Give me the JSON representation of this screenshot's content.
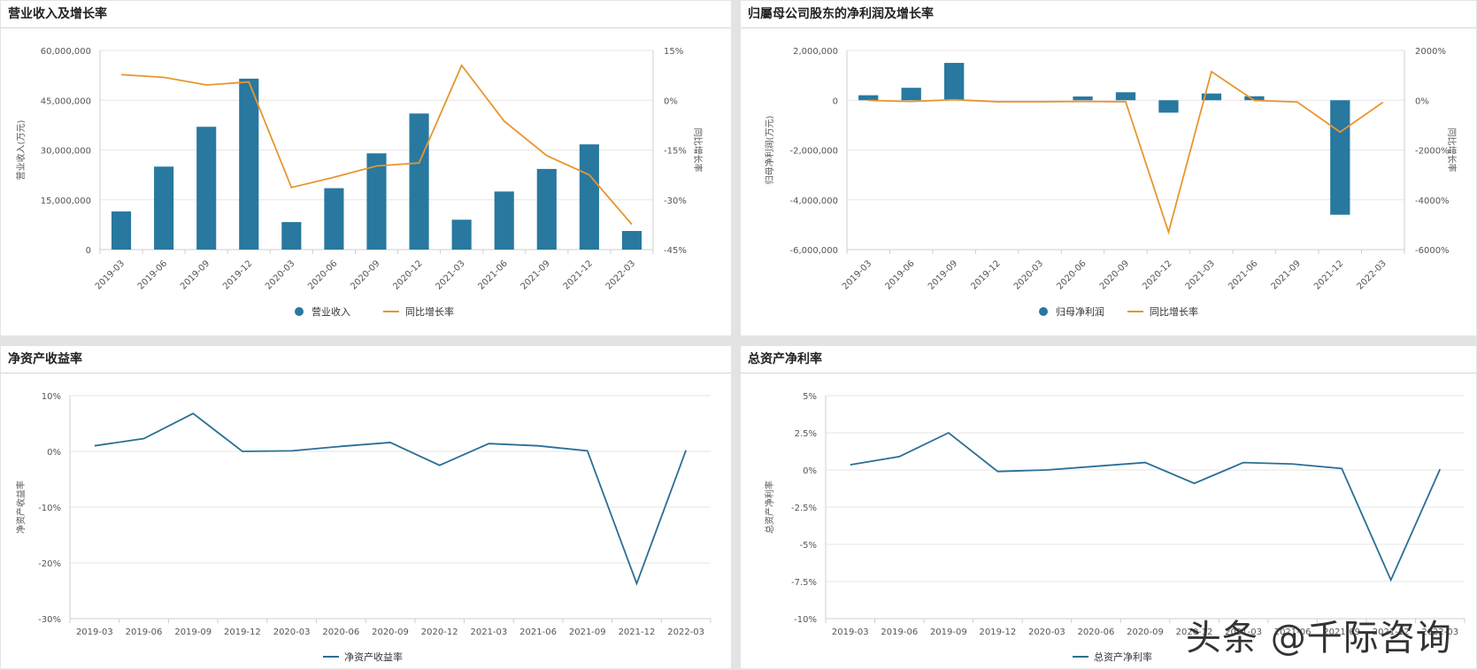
{
  "watermark": "头条 @千际咨询",
  "colors": {
    "bar": "#2878a0",
    "growth": "#e8962f",
    "line": "#2a6f95",
    "grid": "#e6e6e6",
    "axis": "#cfcfcf",
    "text": "#555555"
  },
  "chart_data": [
    {
      "type": "bar",
      "title": "营业收入及增长率",
      "categories": [
        "2019-03",
        "2019-06",
        "2019-09",
        "2019-12",
        "2020-03",
        "2020-06",
        "2020-09",
        "2020-12",
        "2021-03",
        "2021-06",
        "2021-09",
        "2021-12",
        "2022-03"
      ],
      "series": [
        {
          "name": "营业收入",
          "kind": "bar",
          "axis": "left",
          "values": [
            11500000,
            25000000,
            37000000,
            51500000,
            8300000,
            18500000,
            29000000,
            41000000,
            9000000,
            17500000,
            24300000,
            31700000,
            5600000
          ]
        },
        {
          "name": "同比增长率",
          "kind": "line",
          "axis": "right",
          "values": [
            7.7,
            6.9,
            4.6,
            5.5,
            -26.3,
            -23.2,
            -19.8,
            -18.9,
            10.5,
            -6.3,
            -16.7,
            -22.5,
            -37.4
          ]
        }
      ],
      "ylabel": "营业收入(万元)",
      "y2label": "同比增长率",
      "ylim": [
        0,
        60000000
      ],
      "yticks": [
        0,
        15000000,
        30000000,
        45000000,
        60000000
      ],
      "ytick_labels": [
        "0",
        "15,000,000",
        "30,000,000",
        "45,000,000",
        "60,000,000"
      ],
      "y2lim": [
        -45,
        15
      ],
      "y2ticks": [
        -45,
        -30,
        -15,
        0,
        15
      ],
      "y2tick_labels": [
        "-45%",
        "-30%",
        "-15%",
        "0%",
        "15%"
      ],
      "legend": [
        "营业收入",
        "同比增长率"
      ]
    },
    {
      "type": "bar",
      "title": "归屬母公司股东的净利润及增长率",
      "categories": [
        "2019-03",
        "2019-06",
        "2019-09",
        "2019-12",
        "2020-03",
        "2020-06",
        "2020-09",
        "2020-12",
        "2021-03",
        "2021-06",
        "2021-09",
        "2021-12",
        "2022-03"
      ],
      "series": [
        {
          "name": "归母净利润",
          "kind": "bar",
          "axis": "left",
          "values": [
            200000,
            500000,
            1500000,
            0,
            0,
            150000,
            320000,
            -500000,
            270000,
            160000,
            0,
            -4600000,
            0
          ]
        },
        {
          "name": "同比增长率",
          "kind": "line",
          "axis": "right",
          "values": [
            -10,
            -50,
            20,
            -60,
            -60,
            -50,
            -60,
            -5300,
            1150,
            -10,
            -70,
            -1280,
            -80
          ]
        }
      ],
      "ylabel": "归母净利润(万元)",
      "y2label": "同比增长率",
      "ylim": [
        -6000000,
        2000000
      ],
      "yticks": [
        -6000000,
        -4000000,
        -2000000,
        0,
        2000000
      ],
      "ytick_labels": [
        "-6,000,000",
        "-4,000,000",
        "-2,000,000",
        "0",
        "2,000,000"
      ],
      "y2lim": [
        -6000,
        2000
      ],
      "y2ticks": [
        -6000,
        -4000,
        -2000,
        0,
        2000
      ],
      "y2tick_labels": [
        "-6000%",
        "-4000%",
        "-2000%",
        "0%",
        "2000%"
      ],
      "legend": [
        "归母净利润",
        "同比增长率"
      ]
    },
    {
      "type": "line",
      "title": "净资产收益率",
      "categories": [
        "2019-03",
        "2019-06",
        "2019-09",
        "2019-12",
        "2020-03",
        "2020-06",
        "2020-09",
        "2020-12",
        "2021-03",
        "2021-06",
        "2021-09",
        "2021-12",
        "2022-03"
      ],
      "series": [
        {
          "name": "净资产收益率",
          "values": [
            1.0,
            2.3,
            6.8,
            0.0,
            0.1,
            0.9,
            1.6,
            -2.5,
            1.4,
            1.0,
            0.1,
            -23.7,
            0.2
          ]
        }
      ],
      "ylabel": "净资产收益率",
      "ylim": [
        -30,
        10
      ],
      "yticks": [
        -30,
        -20,
        -10,
        0,
        10
      ],
      "ytick_labels": [
        "-30%",
        "-20%",
        "-10%",
        "0%",
        "10%"
      ],
      "legend": [
        "净资产收益率"
      ]
    },
    {
      "type": "line",
      "title": "总资产净利率",
      "categories": [
        "2019-03",
        "2019-06",
        "2019-09",
        "2019-12",
        "2020-03",
        "2020-06",
        "2020-09",
        "2020-12",
        "2021-03",
        "2021-06",
        "2021-09",
        "2021-12",
        "2022-03"
      ],
      "series": [
        {
          "name": "总资产净利率",
          "values": [
            0.35,
            0.9,
            2.5,
            -0.1,
            0.0,
            0.25,
            0.5,
            -0.9,
            0.5,
            0.4,
            0.1,
            -7.4,
            0.05
          ]
        }
      ],
      "ylabel": "总资产净利率",
      "ylim": [
        -10,
        5
      ],
      "yticks": [
        -10,
        -7.5,
        -5,
        -2.5,
        0,
        2.5,
        5
      ],
      "ytick_labels": [
        "-10%",
        "-7.5%",
        "-5%",
        "-2.5%",
        "0%",
        "2.5%",
        "5%"
      ],
      "legend": [
        "总资产净利率"
      ]
    }
  ]
}
